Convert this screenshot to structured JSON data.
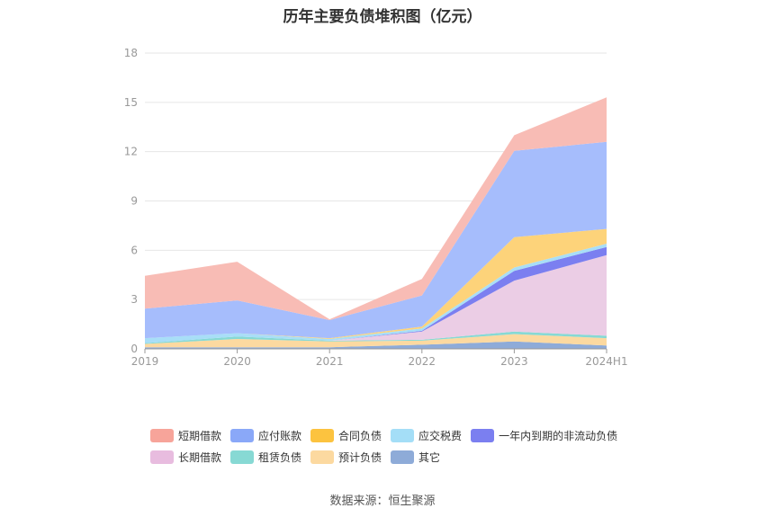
{
  "title": "历年主要负债堆积图（亿元）",
  "source": "数据来源：恒生聚源",
  "chart_data": {
    "type": "area",
    "stacked": true,
    "title": "历年主要负债堆积图（亿元）",
    "x": [
      "2019",
      "2020",
      "2021",
      "2022",
      "2023",
      "2024H1"
    ],
    "ylim": [
      0,
      18
    ],
    "yticks": [
      0,
      3,
      6,
      9,
      12,
      15,
      18
    ],
    "grid": true,
    "legend_position": "bottom",
    "series": [
      {
        "name": "其它",
        "color": "#8eabd8",
        "values": [
          0.1,
          0.1,
          0.1,
          0.25,
          0.45,
          0.2
        ]
      },
      {
        "name": "预计负债",
        "color": "#fcd9a0",
        "values": [
          0.2,
          0.5,
          0.35,
          0.25,
          0.45,
          0.45
        ]
      },
      {
        "name": "租赁负债",
        "color": "#87d9d4",
        "values": [
          0.05,
          0.15,
          0.05,
          0.05,
          0.15,
          0.15
        ]
      },
      {
        "name": "长期借款",
        "color": "#ebcde5",
        "values": [
          0.0,
          0.0,
          0.0,
          0.5,
          3.1,
          4.9
        ]
      },
      {
        "name": "一年内到期的非流动负债",
        "color": "#7b7ff0",
        "values": [
          0.0,
          0.0,
          0.0,
          0.05,
          0.6,
          0.5
        ]
      },
      {
        "name": "应交税费",
        "color": "#a8def7",
        "values": [
          0.3,
          0.2,
          0.1,
          0.15,
          0.2,
          0.2
        ]
      },
      {
        "name": "合同负债",
        "color": "#fdd37a",
        "values": [
          0.0,
          0.0,
          0.05,
          0.1,
          1.85,
          0.9
        ]
      },
      {
        "name": "应付账款",
        "color": "#a6bdfc",
        "values": [
          1.8,
          2.0,
          1.1,
          1.9,
          5.25,
          5.3
        ]
      },
      {
        "name": "短期借款",
        "color": "#f8bcb5",
        "values": [
          2.0,
          2.35,
          0.05,
          1.0,
          0.95,
          2.7
        ]
      }
    ]
  },
  "legend": {
    "row1": [
      {
        "label": "短期借款",
        "color": "#f7a49a"
      },
      {
        "label": "应付账款",
        "color": "#8aa8f8"
      },
      {
        "label": "合同负债",
        "color": "#fcc33f"
      },
      {
        "label": "应交税费",
        "color": "#a4def7"
      },
      {
        "label": "一年内到期的非流动负债",
        "color": "#7b7ff0"
      }
    ],
    "row2": [
      {
        "label": "长期借款",
        "color": "#e8bcdf"
      },
      {
        "label": "租赁负债",
        "color": "#87d9d4"
      },
      {
        "label": "预计负债",
        "color": "#fcd9a0"
      },
      {
        "label": "其它",
        "color": "#8eabd8"
      }
    ]
  }
}
